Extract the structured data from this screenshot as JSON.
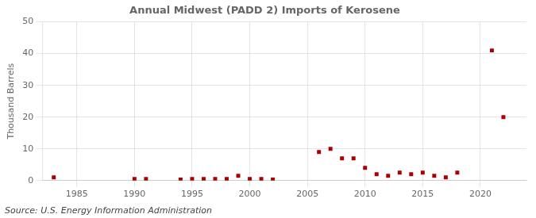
{
  "chart_data": {
    "type": "scatter",
    "title": "Annual Midwest (PADD 2) Imports of Kerosene",
    "ylabel": "Thousand Barrels",
    "annotations": [
      "Source: U.S. Energy Information Administration"
    ],
    "x": [
      1983,
      1990,
      1991,
      1994,
      1995,
      1996,
      1997,
      1998,
      1999,
      2000,
      2001,
      2002,
      2006,
      2007,
      2008,
      2009,
      2010,
      2011,
      2012,
      2013,
      2014,
      2015,
      2016,
      2017,
      2018,
      2021,
      2022
    ],
    "values": [
      1,
      0.5,
      0.5,
      0.3,
      0.5,
      0.5,
      0.5,
      0.5,
      1.5,
      0.5,
      0.5,
      0.3,
      9,
      10,
      7,
      7,
      4,
      2,
      1.5,
      2.5,
      2,
      2.5,
      1.5,
      1,
      2.5,
      41,
      20
    ],
    "color": "#aa0000",
    "marker": "square",
    "xlim": [
      1982,
      2024
    ],
    "xticks": [
      1985,
      1990,
      1995,
      2000,
      2005,
      2010,
      2015,
      2020
    ],
    "ylim": [
      0,
      50
    ],
    "yticks": [
      0,
      10,
      20,
      30,
      40,
      50
    ],
    "grid": true
  }
}
